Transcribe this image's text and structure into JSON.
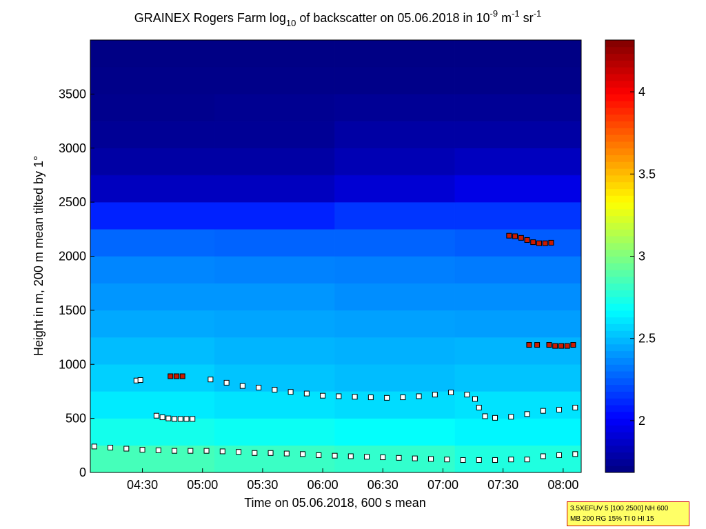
{
  "chart_data": {
    "type": "heatmap",
    "title": [
      "GRAINEX Rogers Farm log",
      "10",
      " of backscatter on 05.06.2018 in 10",
      "-9",
      " m",
      "-1",
      " sr",
      "-1"
    ],
    "xlabel": "Time on 05.06.2018, 600 s mean",
    "ylabel": "Height in m, 200 m mean tilted by 1°",
    "xlim": [
      244,
      489
    ],
    "xticks": [
      {
        "value": 270,
        "label": "04:30"
      },
      {
        "value": 300,
        "label": "05:00"
      },
      {
        "value": 330,
        "label": "05:30"
      },
      {
        "value": 360,
        "label": "06:00"
      },
      {
        "value": 390,
        "label": "06:30"
      },
      {
        "value": 420,
        "label": "07:00"
      },
      {
        "value": 450,
        "label": "07:30"
      },
      {
        "value": 480,
        "label": "08:00"
      }
    ],
    "ylim": [
      0,
      4000
    ],
    "yticks": [
      0,
      500,
      1000,
      1500,
      2000,
      2500,
      3000,
      3500
    ],
    "clim": [
      1.685,
      4.315
    ],
    "cticks": [
      2,
      2.5,
      3,
      3.5,
      4
    ],
    "x_edges": [
      244,
      306,
      366,
      426,
      489
    ],
    "y_edges": [
      0,
      250,
      500,
      750,
      1000,
      1250,
      1500,
      1750,
      2000,
      2250,
      2500,
      2750,
      3000,
      3250,
      3500,
      3750,
      4000
    ],
    "z": [
      [
        2.85,
        2.82,
        2.8,
        2.75
      ],
      [
        2.72,
        2.7,
        2.68,
        2.65
      ],
      [
        2.62,
        2.6,
        2.58,
        2.6
      ],
      [
        2.55,
        2.52,
        2.5,
        2.52
      ],
      [
        2.5,
        2.48,
        2.47,
        2.48
      ],
      [
        2.45,
        2.44,
        2.43,
        2.42
      ],
      [
        2.4,
        2.4,
        2.38,
        2.38
      ],
      [
        2.36,
        2.35,
        2.34,
        2.33
      ],
      [
        2.28,
        2.27,
        2.27,
        2.25
      ],
      [
        2.1,
        2.1,
        2.15,
        2.15
      ],
      [
        1.85,
        1.85,
        1.9,
        1.95
      ],
      [
        1.78,
        1.78,
        1.82,
        1.85
      ],
      [
        1.74,
        1.74,
        1.78,
        1.78
      ],
      [
        1.72,
        1.73,
        1.74,
        1.74
      ],
      [
        1.71,
        1.71,
        1.71,
        1.71
      ],
      [
        1.7,
        1.7,
        1.7,
        1.7
      ]
    ],
    "points": [
      {
        "color": "#ffffff",
        "x": [
          246,
          254,
          262,
          270,
          278,
          286,
          294,
          302,
          310,
          318,
          326,
          334,
          342,
          350,
          358,
          366,
          374,
          382,
          390,
          398,
          406,
          414,
          422,
          430,
          438,
          446,
          454,
          462,
          470,
          478,
          486
        ],
        "y": [
          240,
          230,
          220,
          210,
          205,
          200,
          200,
          200,
          195,
          190,
          180,
          180,
          175,
          170,
          160,
          155,
          150,
          145,
          140,
          135,
          130,
          125,
          120,
          115,
          115,
          115,
          120,
          120,
          150,
          160,
          170
        ]
      },
      {
        "color": "#ffffff",
        "x": [
          267,
          269,
          277,
          280,
          283,
          286,
          289,
          292,
          295
        ],
        "y": [
          850,
          855,
          525,
          510,
          500,
          495,
          495,
          495,
          495
        ]
      },
      {
        "color": "#ffffff",
        "x": [
          304,
          312,
          320,
          328,
          336,
          344,
          352,
          360,
          368,
          376,
          384,
          392,
          400,
          408,
          416,
          424,
          432,
          436,
          438,
          441,
          446,
          454,
          462,
          470,
          478,
          486
        ],
        "y": [
          860,
          830,
          800,
          785,
          765,
          745,
          730,
          710,
          705,
          700,
          695,
          690,
          695,
          705,
          720,
          740,
          720,
          680,
          600,
          520,
          505,
          515,
          540,
          570,
          580,
          600
        ]
      },
      {
        "color": "#cc1a00",
        "x": [
          284,
          287,
          290,
          453,
          456,
          459,
          462,
          465,
          468,
          471,
          474,
          463,
          467,
          473,
          476,
          479,
          482,
          485
        ],
        "y": [
          890,
          890,
          890,
          2190,
          2185,
          2170,
          2150,
          2130,
          2120,
          2120,
          2125,
          1180,
          1180,
          1180,
          1170,
          1170,
          1170,
          1180
        ]
      }
    ],
    "settings_box": [
      "3.5XEFUV 5 [100 2500] NH 600",
      "MB 200 RG 15% TI 0 HI 15"
    ]
  }
}
